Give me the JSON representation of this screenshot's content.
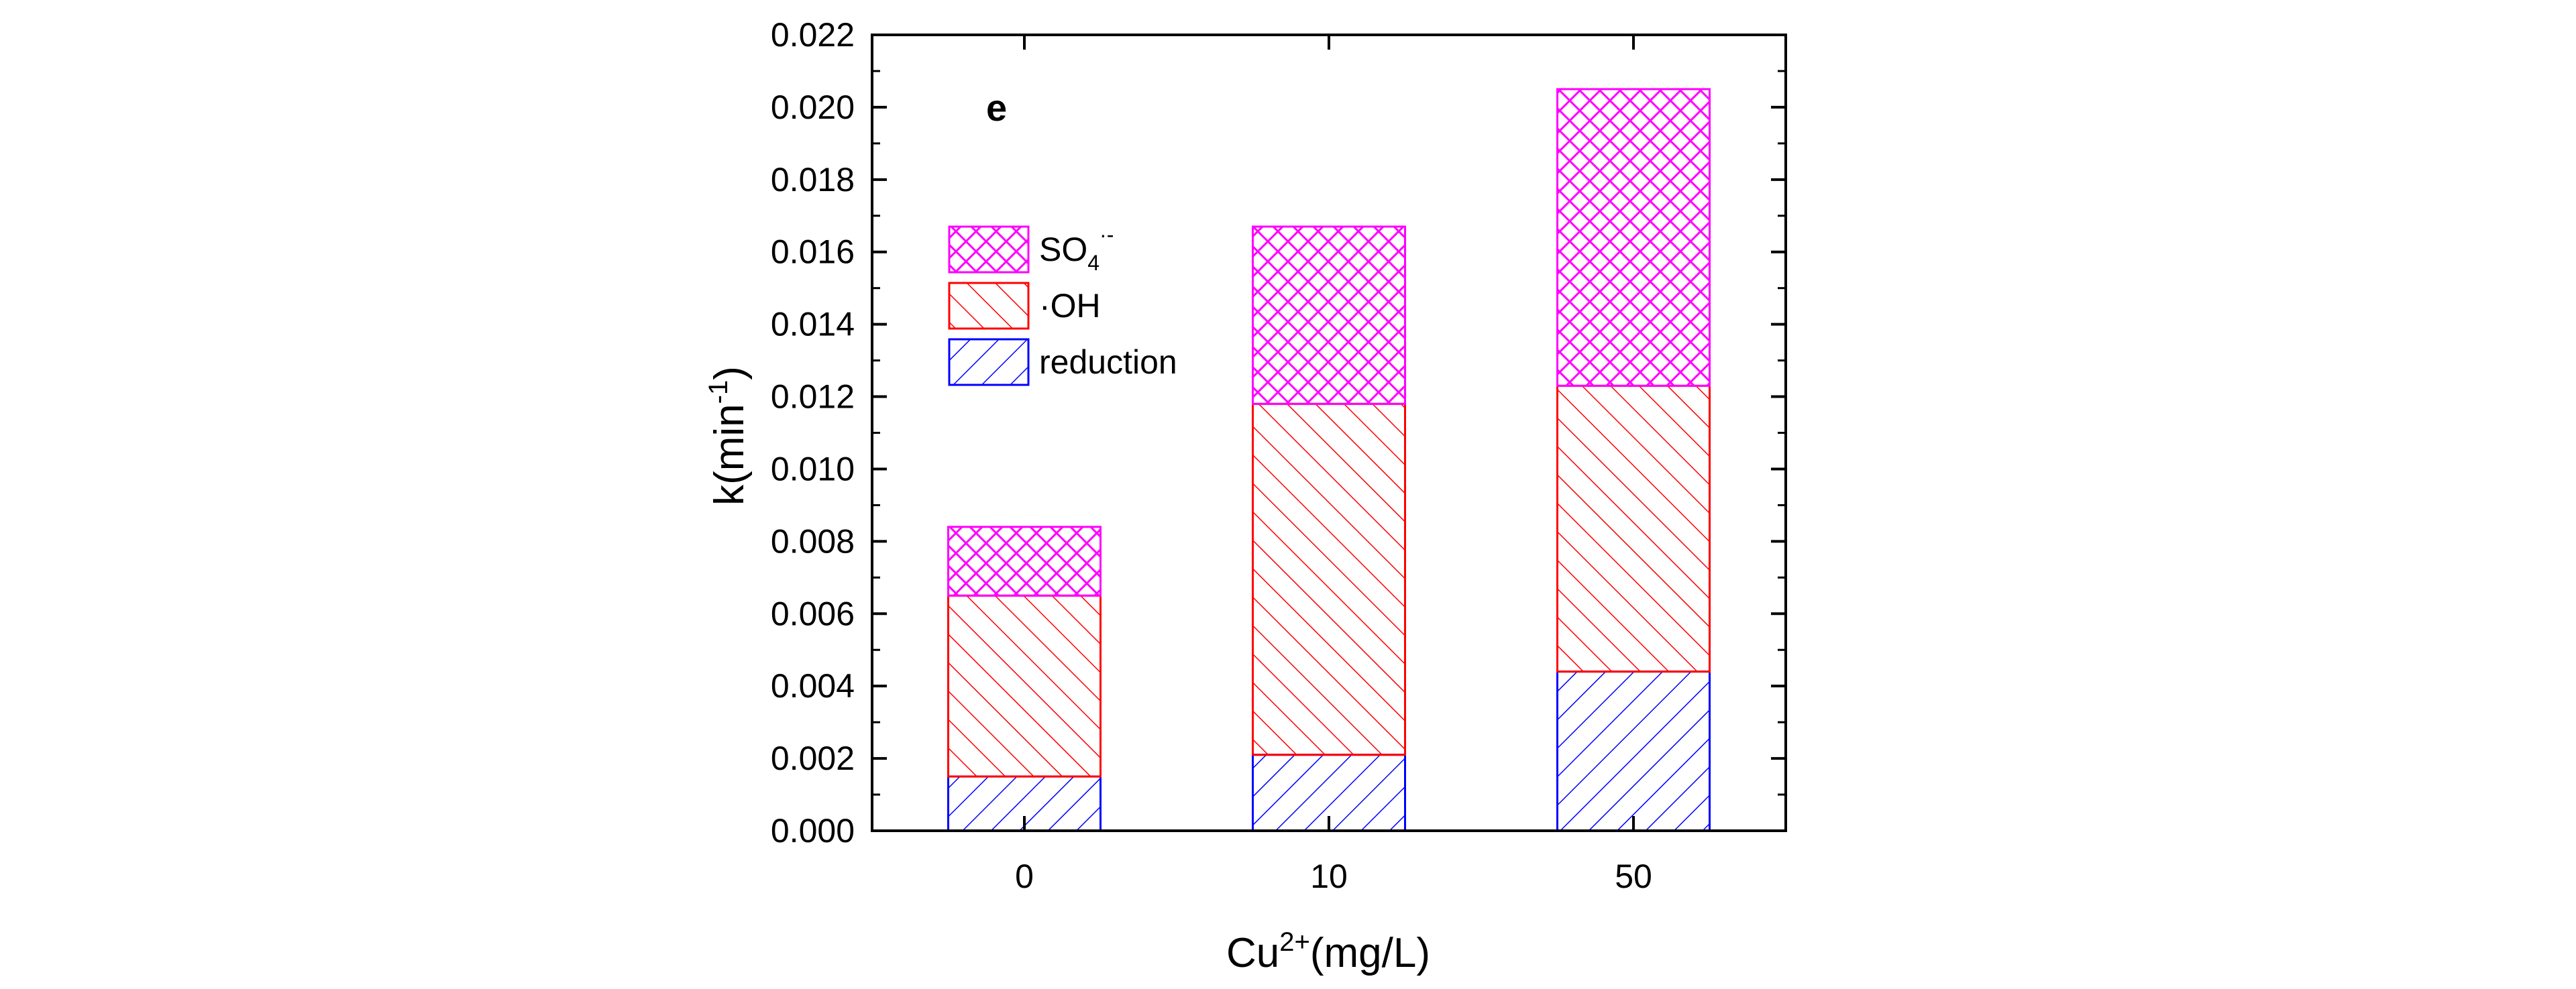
{
  "chart_data": {
    "type": "bar",
    "stacked": true,
    "panel_label": "e",
    "categories": [
      "0",
      "10",
      "50"
    ],
    "series": [
      {
        "name": "reduction",
        "values": [
          0.0015,
          0.0021,
          0.0044
        ],
        "color": "#0000ff",
        "pattern": "diagonal-up"
      },
      {
        "name": "·OH",
        "values": [
          0.005,
          0.0097,
          0.0079
        ],
        "color": "#ff0000",
        "pattern": "diagonal-down"
      },
      {
        "name": "SO4·-",
        "values": [
          0.0019,
          0.0049,
          0.0082
        ],
        "color": "#ff00ff",
        "pattern": "crosshatch"
      }
    ],
    "xlabel": {
      "base": "Cu",
      "sup": "2+",
      "rest": "(mg/L)"
    },
    "ylabel": {
      "base": "k(min",
      "sup": "-1",
      "rest": ")"
    },
    "legend_sublabel": {
      "base": "SO",
      "sub": "4",
      "sup": "·-"
    },
    "ylim": [
      0,
      0.022
    ],
    "yticks": [
      "0.000",
      "0.002",
      "0.004",
      "0.006",
      "0.008",
      "0.010",
      "0.012",
      "0.014",
      "0.016",
      "0.018",
      "0.020",
      "0.022"
    ],
    "legend_position": "top-left",
    "grid": false
  }
}
